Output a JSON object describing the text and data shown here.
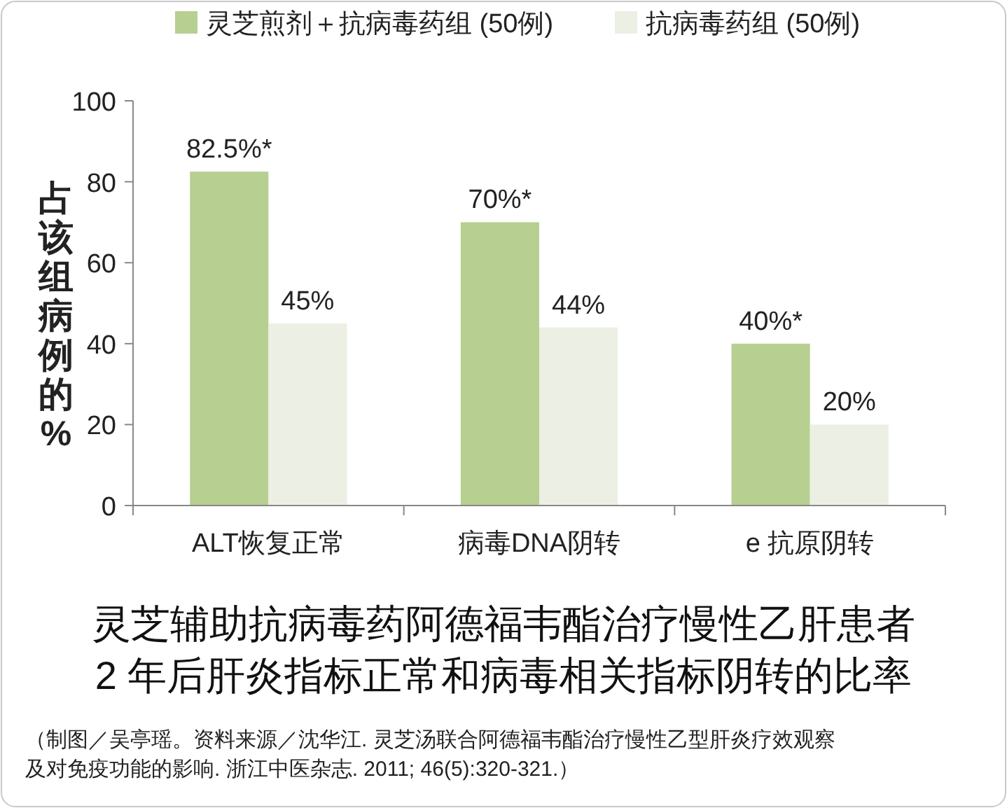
{
  "chart_data": {
    "type": "bar",
    "title": "灵芝辅助抗病毒药阿德福韦酯治疗慢性乙肝患者\n2 年后肝炎指标正常和病毒相关指标阴转的比率",
    "ylabel": "占该组病例的%",
    "categories": [
      "ALT恢复正常",
      "病毒DNA阴转",
      "e 抗原阴转"
    ],
    "series": [
      {
        "name": "灵芝煎剂＋抗病毒药组 (50例)",
        "color": "#b7cf91",
        "values": [
          82.5,
          70,
          40
        ],
        "value_labels": [
          "82.5%*",
          "70%*",
          "40%*"
        ]
      },
      {
        "name": "抗病毒药组 (50例)",
        "color": "#ecefe3",
        "values": [
          45,
          44,
          20
        ],
        "value_labels": [
          "45%",
          "44%",
          "20%"
        ]
      }
    ],
    "ylim": [
      0,
      100
    ],
    "yticks": [
      0,
      20,
      40,
      60,
      80,
      100
    ],
    "legend": "top",
    "grid": false,
    "annotations": [
      "（制图／吴亭瑶。资料来源／沈华江. 灵芝汤联合阿德福韦酯治疗慢性乙型肝炎疗效观察及对免疫功能的影响. 浙江中医杂志. 2011; 46(5):320-321.）"
    ]
  }
}
